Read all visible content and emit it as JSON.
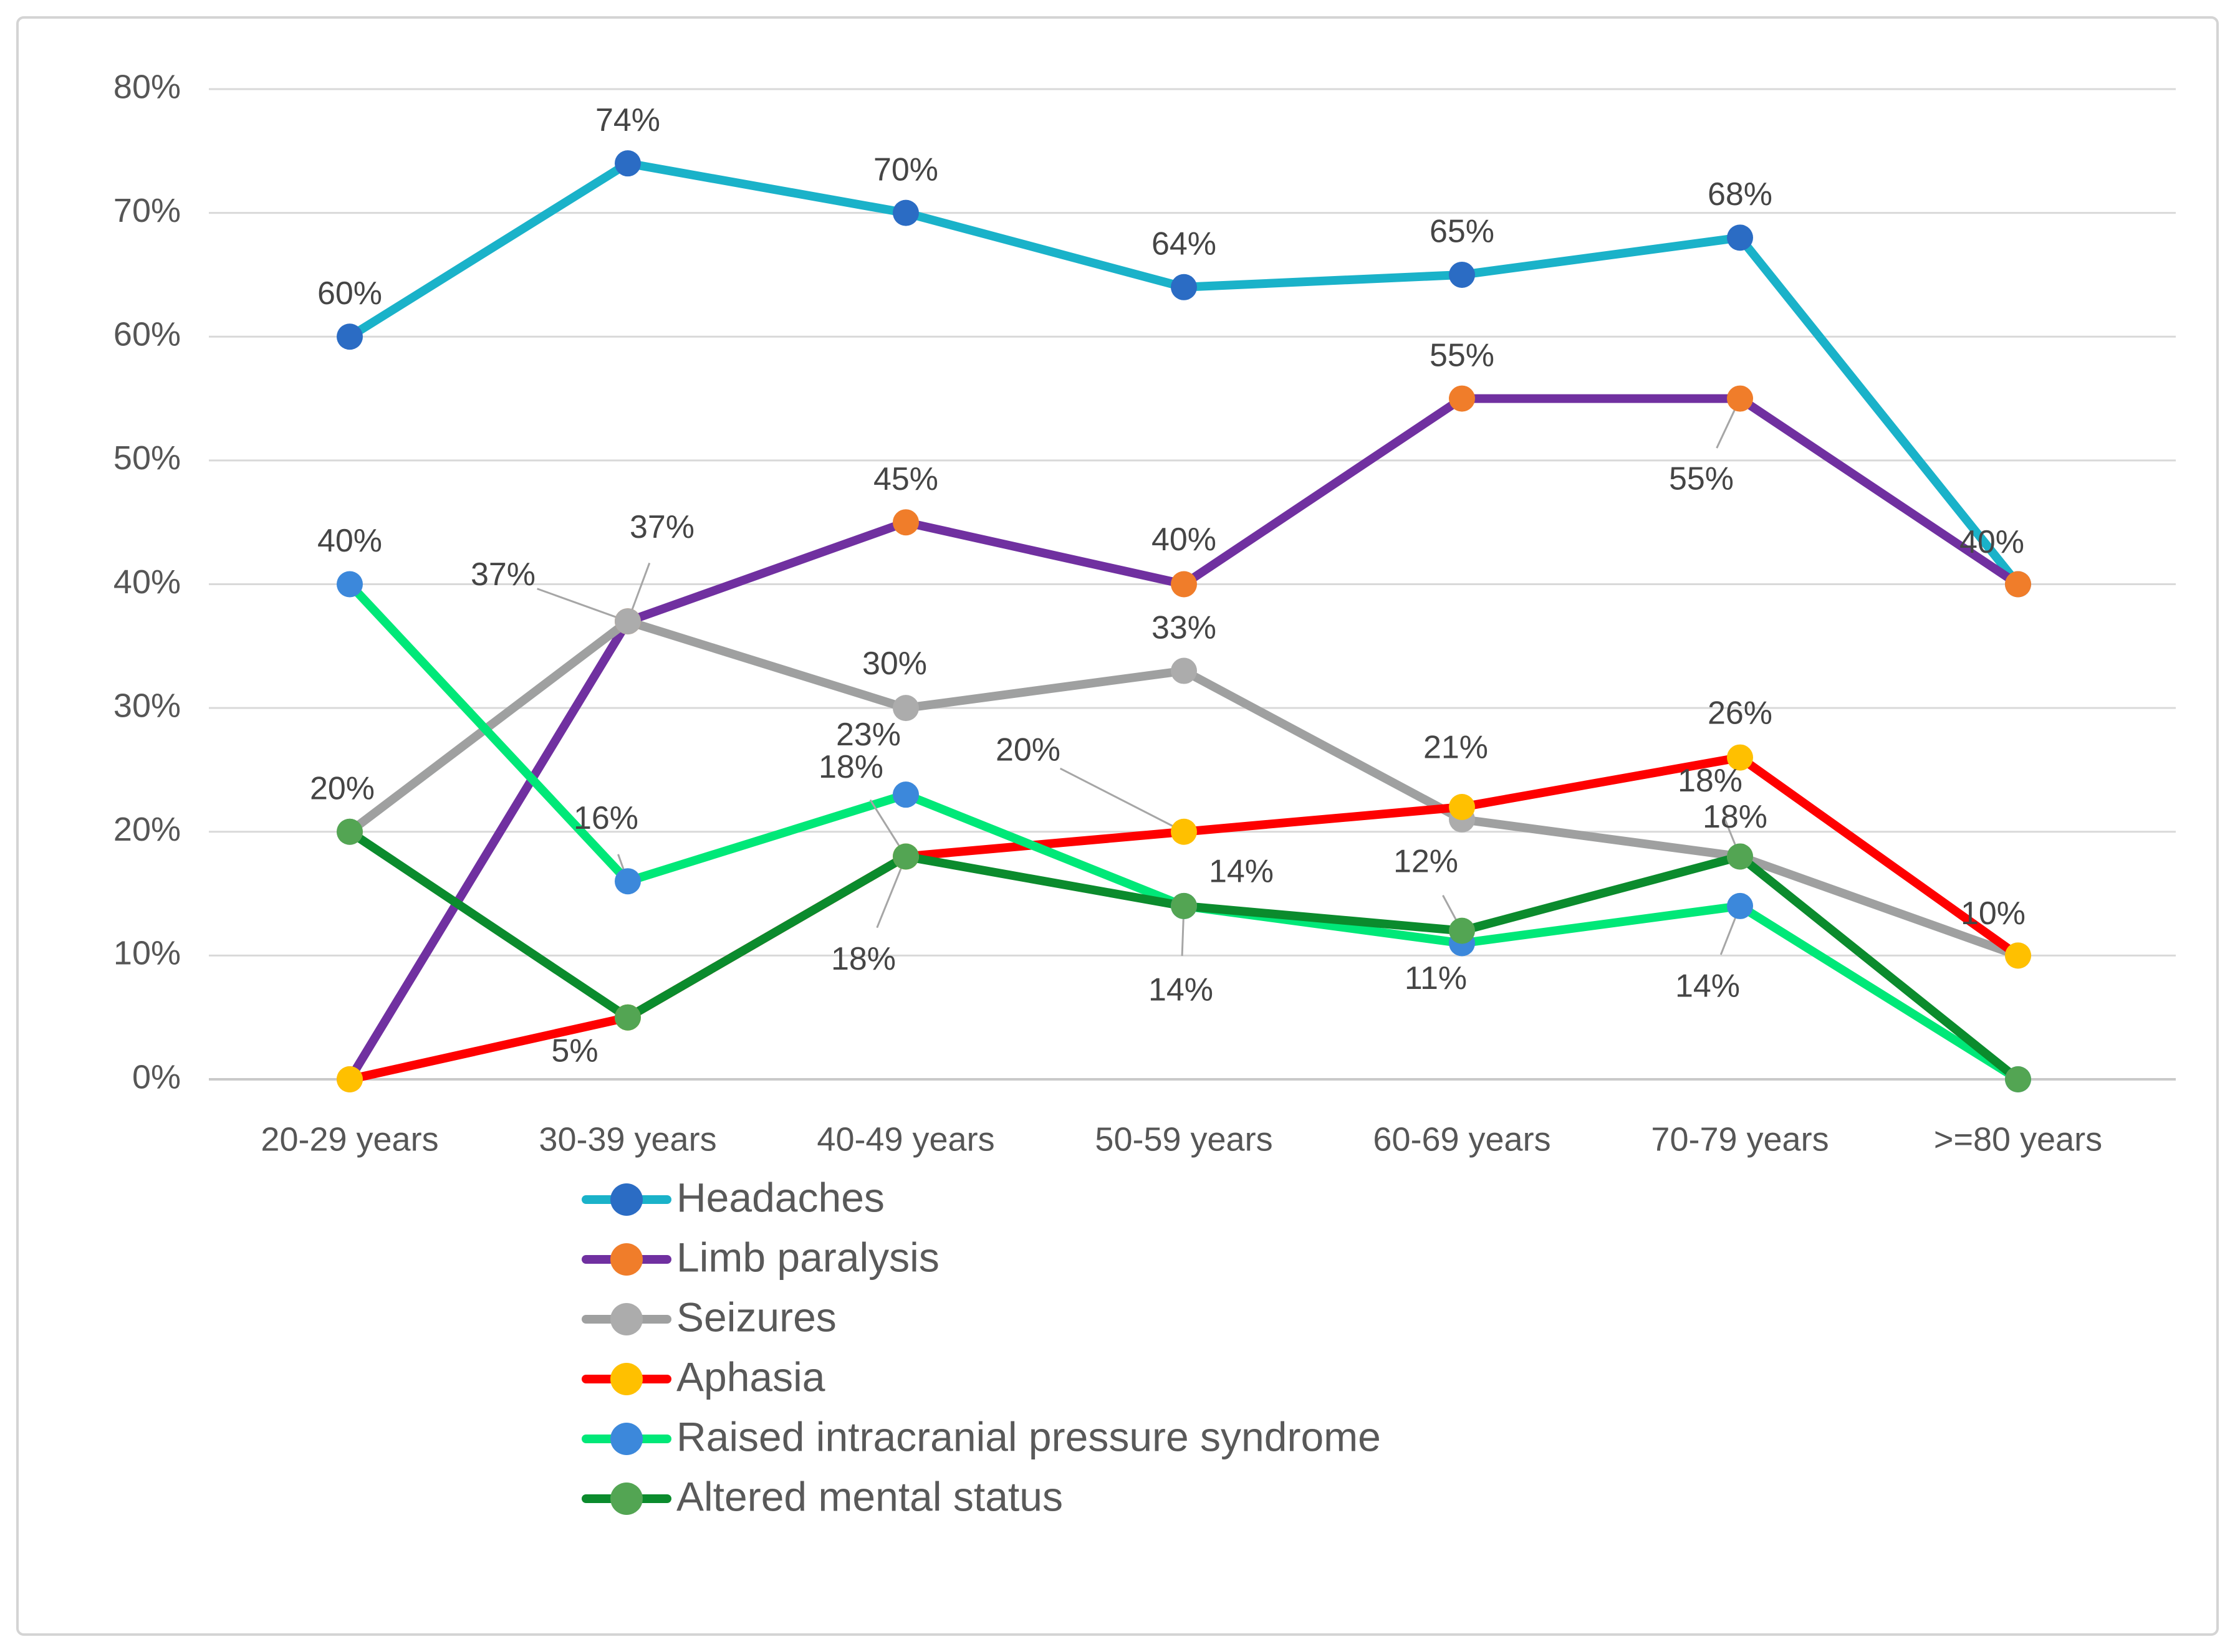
{
  "figure": {
    "background": "#ffffff",
    "frame_color": "#d4d4d4"
  },
  "chart_data": {
    "type": "line",
    "title": "",
    "xlabel": "",
    "ylabel": "",
    "ylim": [
      0,
      80
    ],
    "grid": true,
    "legend_position": "bottom-left",
    "text_color": "#565656",
    "data_label_color": "#454545",
    "grid_color": "#d9d9d9",
    "axis_line_color": "#c9c9c9",
    "leader_color": "#a6a6a6",
    "y_ticks": [
      "80%",
      "70%",
      "60%",
      "50%",
      "40%",
      "30%",
      "20%",
      "10%",
      "0%"
    ],
    "categories": [
      "20-29 years",
      "30-39 years",
      "40-49 years",
      "50-59 years",
      "60-69 years",
      "70-79 years",
      ">=80 years"
    ],
    "series": [
      {
        "name": "Headaches",
        "line_color": "#1ab2c9",
        "marker_color": "#2b6cc4",
        "values": [
          60,
          74,
          70,
          64,
          65,
          68,
          40
        ],
        "labels": [
          {
            "text": "60%",
            "dx": 0,
            "dy": -66
          },
          {
            "text": "74%",
            "dx": 0,
            "dy": -66
          },
          {
            "text": "70%",
            "dx": 0,
            "dy": -66
          },
          {
            "text": "64%",
            "dx": 0,
            "dy": -66
          },
          {
            "text": "65%",
            "dx": 0,
            "dy": -66
          },
          {
            "text": "68%",
            "dx": 0,
            "dy": -66
          },
          {
            "text": "40%",
            "dx": -42,
            "dy": -64
          }
        ]
      },
      {
        "name": "Limb paralysis",
        "line_color": "#7030a0",
        "marker_color": "#f07d2a",
        "values": [
          0,
          37,
          45,
          40,
          55,
          55,
          40
        ],
        "labels": [
          null,
          {
            "text": "37%",
            "dx": 55,
            "dy": -148,
            "leader": true
          },
          {
            "text": "45%",
            "dx": 0,
            "dy": -66
          },
          {
            "text": "40%",
            "dx": 0,
            "dy": -68
          },
          {
            "text": "55%",
            "dx": 0,
            "dy": -66
          },
          {
            "text": "55%",
            "dx": -62,
            "dy": 132,
            "leader": true
          },
          null
        ]
      },
      {
        "name": "Seizures",
        "line_color": "#9fa0a0",
        "marker_color": "#acacac",
        "values": [
          20,
          37,
          30,
          33,
          21,
          18,
          10
        ],
        "labels": [
          {
            "text": "20%",
            "dx": -12,
            "dy": -66
          },
          {
            "text": "37%",
            "dx": -200,
            "dy": -72,
            "leader": true
          },
          {
            "text": "30%",
            "dx": -18,
            "dy": -68
          },
          {
            "text": "33%",
            "dx": 0,
            "dy": -66
          },
          {
            "text": "21%",
            "dx": -10,
            "dy": -112
          },
          {
            "text": "18%",
            "dx": -48,
            "dy": -118,
            "leader": true
          },
          null
        ]
      },
      {
        "name": "Aphasia",
        "line_color": "#fe0000",
        "marker_color": "#ffc000",
        "values": [
          0,
          5,
          18,
          20,
          22,
          26,
          10
        ],
        "labels": [
          null,
          {
            "text": "5%",
            "dx": -85,
            "dy": 57
          },
          {
            "text": "18%",
            "dx": -88,
            "dy": -140,
            "leader": true
          },
          {
            "text": "20%",
            "dx": -250,
            "dy": -128,
            "leader": true
          },
          null,
          {
            "text": "26%",
            "dx": 0,
            "dy": -68
          },
          {
            "text": "10%",
            "dx": -40,
            "dy": -64
          }
        ]
      },
      {
        "name": "Raised intracranial pressure syndrome",
        "line_color": "#00e878",
        "marker_color": "#3c88db",
        "values": [
          40,
          16,
          23,
          14,
          11,
          14,
          0
        ],
        "labels": [
          {
            "text": "40%",
            "dx": 0,
            "dy": -66
          },
          {
            "text": "16%",
            "dx": -35,
            "dy": -98,
            "leader": true
          },
          {
            "text": "23%",
            "dx": -60,
            "dy": -93
          },
          {
            "text": "14%",
            "dx": -5,
            "dy": 138,
            "leader": true
          },
          {
            "text": "11%",
            "dx": -42,
            "dy": 60
          },
          {
            "text": "14%",
            "dx": -52,
            "dy": 132,
            "leader": true
          },
          null
        ]
      },
      {
        "name": "Altered mental status",
        "line_color": "#0b8b2d",
        "marker_color": "#53a553",
        "values": [
          20,
          5,
          18,
          14,
          12,
          18,
          0
        ],
        "labels": [
          null,
          null,
          {
            "text": "18%",
            "dx": -68,
            "dy": 168,
            "leader": true
          },
          {
            "text": "14%",
            "dx": 92,
            "dy": -52
          },
          {
            "text": "12%",
            "dx": -58,
            "dy": -108,
            "leader": true
          },
          {
            "text": "18%",
            "dx": -8,
            "dy": -60,
            "leader": true
          },
          null
        ]
      }
    ]
  }
}
